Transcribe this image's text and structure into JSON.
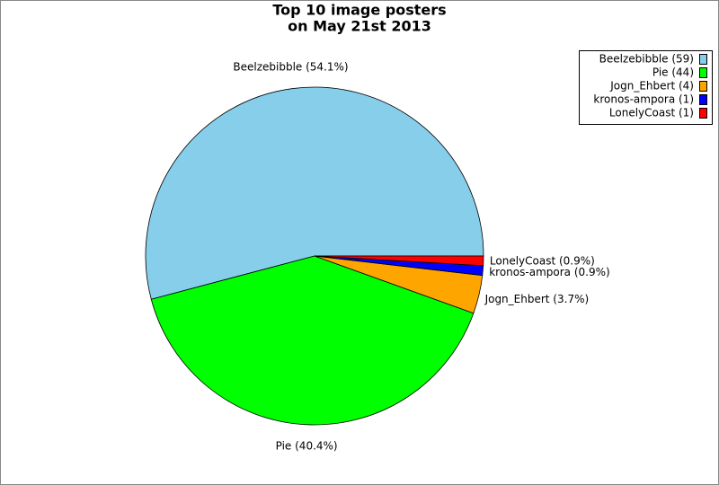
{
  "chart_data": {
    "type": "pie",
    "title": "Top 10 image posters",
    "subtitle": "on May 21st 2013",
    "categories": [
      "Beelzebibble",
      "Pie",
      "Jogn_Ehbert",
      "kronos-ampora",
      "LonelyCoast"
    ],
    "values": [
      59,
      44,
      4,
      1,
      1
    ],
    "value_labels": [
      "Beelzebibble (54.1%)",
      "Pie (40.4%)",
      "Jogn_Ehbert (3.7%)",
      "kronos-ampora (0.9%)",
      "LonelyCoast (0.9%)"
    ],
    "legend_labels": [
      "Beelzebibble (59)",
      "Pie (44)",
      "Jogn_Ehbert (4)",
      "kronos-ampora (1)",
      "LonelyCoast (1)"
    ],
    "colors": [
      "#87ceeb",
      "#00ff00",
      "#ffa500",
      "#0000ff",
      "#ff0000"
    ],
    "legend": "top-right"
  }
}
